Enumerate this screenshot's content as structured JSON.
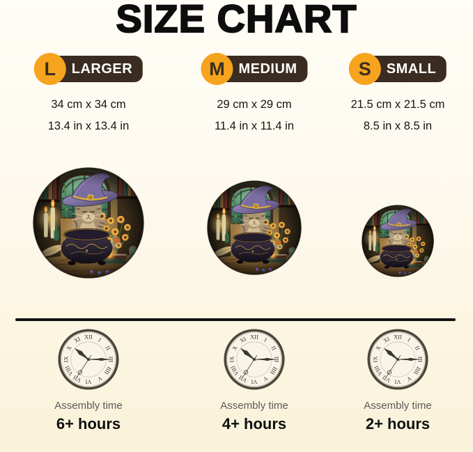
{
  "title": "SIZE CHART",
  "columns": [
    {
      "letter": "L",
      "label": "LARGER",
      "size_cm": "34 cm x 34 cm",
      "size_in": "13.4 in x 13.4 in",
      "assembly_label": "Assembly time",
      "assembly_time": "6+ hours"
    },
    {
      "letter": "M",
      "label": "MEDIUM",
      "size_cm": "29 cm x 29 cm",
      "size_in": "11.4 in x 11.4 in",
      "assembly_label": "Assembly time",
      "assembly_time": "4+ hours"
    },
    {
      "letter": "S",
      "label": "SMALL",
      "size_cm": "21.5 cm x 21.5 cm",
      "size_in": "8.5 in x 8.5 in",
      "assembly_label": "Assembly time",
      "assembly_time": "2+ hours"
    }
  ],
  "clock": {
    "numerals": [
      "XII",
      "I",
      "II",
      "III",
      "IIII",
      "V",
      "VI",
      "VII",
      "VIII",
      "IX",
      "X",
      "XI"
    ],
    "hour_angle": 309,
    "minute_angle": 90,
    "second_angle": 213
  },
  "icons": {
    "clock": "clock-icon",
    "puzzle": "round-puzzle-art-cat-witch-cauldron"
  },
  "colors": {
    "accent_orange": "#F6A41D",
    "badge_brown": "#3A2C21",
    "divider": "#141414",
    "background_top": "#FFFDF6",
    "background_bottom": "#FAF2DA",
    "text_primary": "#111111",
    "text_secondary": "#5A5A5A"
  }
}
